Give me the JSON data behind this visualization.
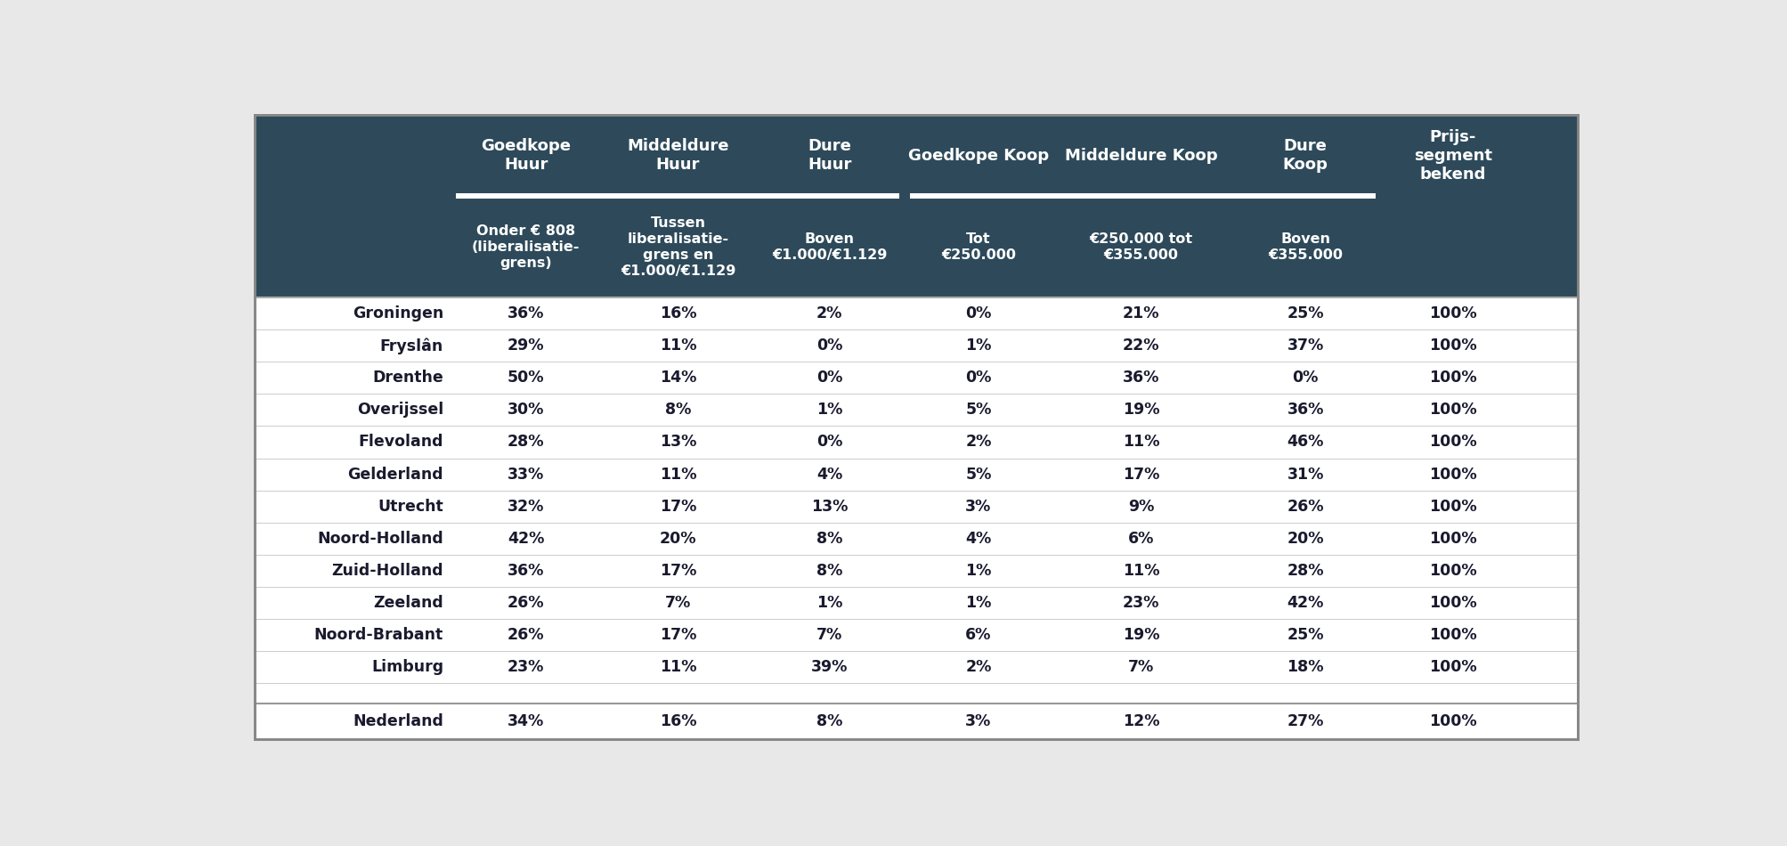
{
  "header_bg": "#2e4a5a",
  "header_text_color": "#ffffff",
  "body_bg": "#ffffff",
  "outer_bg": "#e8e8e8",
  "body_text_color": "#1a1a2e",
  "border_color": "#888888",
  "light_line_color": "#cccccc",
  "col_headers_top": [
    "Goedkope\nHuur",
    "Middeldure\nHuur",
    "Dure\nHuur",
    "Goedkope Koop",
    "Middeldure Koop",
    "Dure\nKoop",
    "Prijs-\nsegment\nbekend"
  ],
  "col_headers_sub": [
    "Onder € 808\n(liberalisatie-\ngrens)",
    "Tussen\nliberalisatie-\ngrens en\n€1.000/€1.129",
    "Boven\n€1.000/€1.129",
    "Tot\n€250.000",
    "€250.000 tot\n€355.000",
    "Boven\n€355.000",
    ""
  ],
  "provinces": [
    "Groningen",
    "Fryslân",
    "Drenthe",
    "Overijssel",
    "Flevoland",
    "Gelderland",
    "Utrecht",
    "Noord-Holland",
    "Zuid-Holland",
    "Zeeland",
    "Noord-Brabant",
    "Limburg",
    "",
    "Nederland"
  ],
  "data": [
    [
      "36%",
      "16%",
      "2%",
      "0%",
      "21%",
      "25%",
      "100%"
    ],
    [
      "29%",
      "11%",
      "0%",
      "1%",
      "22%",
      "37%",
      "100%"
    ],
    [
      "50%",
      "14%",
      "0%",
      "0%",
      "36%",
      "0%",
      "100%"
    ],
    [
      "30%",
      "8%",
      "1%",
      "5%",
      "19%",
      "36%",
      "100%"
    ],
    [
      "28%",
      "13%",
      "0%",
      "2%",
      "11%",
      "46%",
      "100%"
    ],
    [
      "33%",
      "11%",
      "4%",
      "5%",
      "17%",
      "31%",
      "100%"
    ],
    [
      "32%",
      "17%",
      "13%",
      "3%",
      "9%",
      "26%",
      "100%"
    ],
    [
      "42%",
      "20%",
      "8%",
      "4%",
      "6%",
      "20%",
      "100%"
    ],
    [
      "36%",
      "17%",
      "8%",
      "1%",
      "11%",
      "28%",
      "100%"
    ],
    [
      "26%",
      "7%",
      "1%",
      "1%",
      "23%",
      "42%",
      "100%"
    ],
    [
      "26%",
      "17%",
      "7%",
      "6%",
      "19%",
      "25%",
      "100%"
    ],
    [
      "23%",
      "11%",
      "39%",
      "2%",
      "7%",
      "18%",
      "100%"
    ],
    [
      "",
      "",
      "",
      "",
      "",
      "",
      ""
    ],
    [
      "34%",
      "16%",
      "8%",
      "3%",
      "12%",
      "27%",
      "100%"
    ]
  ]
}
